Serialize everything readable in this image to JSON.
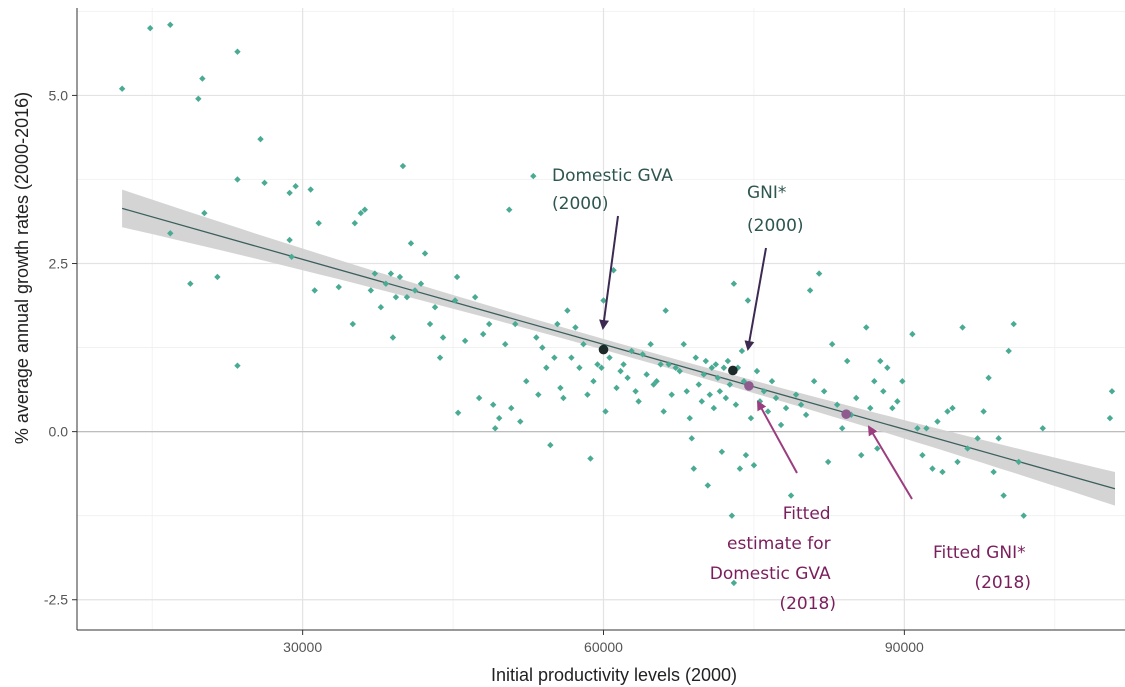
{
  "chart_data": {
    "type": "scatter",
    "xlabel": "Initial productivity levels (2000)",
    "ylabel": "% average annual growth rates (2000-2016)",
    "xlim": [
      7500,
      112000
    ],
    "ylim": [
      -2.95,
      6.3
    ],
    "xticks": [
      30000,
      60000,
      90000
    ],
    "xtick_labels": [
      "30000",
      "60000",
      "90000"
    ],
    "yticks": [
      -2.5,
      0.0,
      2.5,
      5.0
    ],
    "ytick_labels": [
      "-2.5",
      "0.0",
      "2.5",
      "5.0"
    ],
    "grid": true,
    "colors": {
      "points": "#4aab94",
      "fit_line": "#3b5f5c",
      "band": "#cfcfcf",
      "observed": "#1c2b2a",
      "fitted": "#8e5a8f",
      "arrow_observed": "#3c2a52",
      "arrow_fitted": "#9b3d7e",
      "text_observed": "#2e5650",
      "text_fitted": "#7a1f5c"
    },
    "fit": {
      "x": [
        12000,
        111000
      ],
      "y": [
        3.32,
        -0.85
      ],
      "se_at_ends": [
        0.28,
        0.25
      ],
      "se_at_center": 0.08
    },
    "points": [
      [
        12000,
        5.1
      ],
      [
        14800,
        6.0
      ],
      [
        16800,
        6.05
      ],
      [
        16800,
        2.95
      ],
      [
        18800,
        2.2
      ],
      [
        19600,
        4.95
      ],
      [
        20000,
        5.25
      ],
      [
        20200,
        3.25
      ],
      [
        21500,
        2.3
      ],
      [
        23500,
        5.65
      ],
      [
        23500,
        3.75
      ],
      [
        23500,
        0.98
      ],
      [
        25800,
        4.35
      ],
      [
        26200,
        3.7
      ],
      [
        28700,
        3.55
      ],
      [
        28700,
        2.85
      ],
      [
        28900,
        2.6
      ],
      [
        29300,
        3.65
      ],
      [
        30800,
        3.6
      ],
      [
        31200,
        2.1
      ],
      [
        31600,
        3.1
      ],
      [
        33600,
        2.15
      ],
      [
        35000,
        1.6
      ],
      [
        35200,
        3.1
      ],
      [
        35800,
        3.25
      ],
      [
        36200,
        3.3
      ],
      [
        36800,
        2.1
      ],
      [
        37200,
        2.35
      ],
      [
        37800,
        1.85
      ],
      [
        38300,
        2.2
      ],
      [
        38800,
        2.35
      ],
      [
        39000,
        1.4
      ],
      [
        39300,
        2.0
      ],
      [
        39700,
        2.3
      ],
      [
        40000,
        3.95
      ],
      [
        40400,
        2.0
      ],
      [
        40800,
        2.8
      ],
      [
        41200,
        2.1
      ],
      [
        41800,
        2.2
      ],
      [
        42200,
        2.65
      ],
      [
        42700,
        1.6
      ],
      [
        43200,
        1.85
      ],
      [
        43700,
        1.1
      ],
      [
        44000,
        1.4
      ],
      [
        45200,
        1.95
      ],
      [
        45400,
        2.3
      ],
      [
        45500,
        0.28
      ],
      [
        46200,
        1.35
      ],
      [
        47200,
        2.0
      ],
      [
        47600,
        0.5
      ],
      [
        48000,
        1.45
      ],
      [
        48600,
        1.6
      ],
      [
        49000,
        0.4
      ],
      [
        49200,
        0.05
      ],
      [
        49600,
        0.2
      ],
      [
        50200,
        1.3
      ],
      [
        50600,
        3.3
      ],
      [
        50800,
        0.35
      ],
      [
        51200,
        1.6
      ],
      [
        51700,
        0.15
      ],
      [
        52300,
        0.75
      ],
      [
        53000,
        3.8
      ],
      [
        53300,
        1.4
      ],
      [
        53500,
        0.55
      ],
      [
        53900,
        1.25
      ],
      [
        54300,
        0.95
      ],
      [
        54700,
        -0.2
      ],
      [
        55100,
        1.1
      ],
      [
        55400,
        1.6
      ],
      [
        55700,
        0.65
      ],
      [
        56000,
        0.5
      ],
      [
        56400,
        1.8
      ],
      [
        56800,
        1.1
      ],
      [
        57200,
        1.55
      ],
      [
        57600,
        0.95
      ],
      [
        58000,
        1.3
      ],
      [
        58400,
        0.55
      ],
      [
        58700,
        -0.4
      ],
      [
        59000,
        0.75
      ],
      [
        59400,
        1.0
      ],
      [
        59800,
        0.95
      ],
      [
        60000,
        1.95
      ],
      [
        60200,
        0.3
      ],
      [
        60600,
        1.1
      ],
      [
        61000,
        2.4
      ],
      [
        61300,
        0.65
      ],
      [
        61700,
        0.9
      ],
      [
        62000,
        1.0
      ],
      [
        62400,
        0.8
      ],
      [
        62800,
        1.2
      ],
      [
        63200,
        0.6
      ],
      [
        63500,
        0.45
      ],
      [
        63900,
        1.15
      ],
      [
        64300,
        0.85
      ],
      [
        64700,
        1.3
      ],
      [
        65000,
        0.7
      ],
      [
        65300,
        0.75
      ],
      [
        65700,
        1.0
      ],
      [
        66000,
        0.3
      ],
      [
        66200,
        1.8
      ],
      [
        66500,
        1.0
      ],
      [
        66800,
        0.55
      ],
      [
        67200,
        0.95
      ],
      [
        67600,
        0.9
      ],
      [
        68000,
        1.3
      ],
      [
        68300,
        0.6
      ],
      [
        68600,
        0.2
      ],
      [
        68800,
        -0.1
      ],
      [
        69000,
        -0.55
      ],
      [
        69200,
        1.1
      ],
      [
        69500,
        0.7
      ],
      [
        69800,
        0.45
      ],
      [
        70000,
        0.85
      ],
      [
        70200,
        1.05
      ],
      [
        70400,
        -0.8
      ],
      [
        70600,
        0.55
      ],
      [
        70800,
        0.95
      ],
      [
        71000,
        0.35
      ],
      [
        71200,
        1.0
      ],
      [
        71400,
        0.8
      ],
      [
        71600,
        0.6
      ],
      [
        71800,
        -0.3
      ],
      [
        72000,
        0.95
      ],
      [
        72200,
        0.5
      ],
      [
        72400,
        1.05
      ],
      [
        72600,
        0.7
      ],
      [
        72800,
        -1.25
      ],
      [
        73000,
        2.2
      ],
      [
        73200,
        0.4
      ],
      [
        73400,
        0.95
      ],
      [
        73600,
        -0.55
      ],
      [
        73800,
        1.2
      ],
      [
        74000,
        0.75
      ],
      [
        74200,
        -0.35
      ],
      [
        74400,
        1.95
      ],
      [
        74700,
        0.2
      ],
      [
        75000,
        -0.5
      ],
      [
        75300,
        0.9
      ],
      [
        75600,
        0.45
      ],
      [
        76000,
        0.6
      ],
      [
        76400,
        0.3
      ],
      [
        76800,
        0.75
      ],
      [
        77200,
        0.5
      ],
      [
        77700,
        0.1
      ],
      [
        78200,
        0.35
      ],
      [
        78700,
        -0.95
      ],
      [
        79200,
        0.55
      ],
      [
        79700,
        0.4
      ],
      [
        80200,
        0.25
      ],
      [
        80600,
        2.1
      ],
      [
        81000,
        0.75
      ],
      [
        81500,
        2.35
      ],
      [
        82000,
        0.6
      ],
      [
        82400,
        -0.45
      ],
      [
        82800,
        1.3
      ],
      [
        83300,
        0.4
      ],
      [
        83800,
        0.05
      ],
      [
        84300,
        1.05
      ],
      [
        84700,
        0.25
      ],
      [
        85200,
        0.5
      ],
      [
        85700,
        -0.35
      ],
      [
        86200,
        1.55
      ],
      [
        86600,
        0.35
      ],
      [
        87000,
        0.75
      ],
      [
        87300,
        -0.25
      ],
      [
        87600,
        1.05
      ],
      [
        87900,
        0.6
      ],
      [
        88300,
        0.95
      ],
      [
        88800,
        0.35
      ],
      [
        89300,
        0.45
      ],
      [
        89800,
        0.75
      ],
      [
        90800,
        1.45
      ],
      [
        91300,
        0.05
      ],
      [
        91800,
        -0.35
      ],
      [
        92200,
        0.05
      ],
      [
        92800,
        -0.55
      ],
      [
        93300,
        0.15
      ],
      [
        93800,
        -0.6
      ],
      [
        94300,
        0.3
      ],
      [
        94800,
        0.35
      ],
      [
        95300,
        -0.45
      ],
      [
        95800,
        1.55
      ],
      [
        96300,
        -0.25
      ],
      [
        97300,
        -0.1
      ],
      [
        97900,
        0.3
      ],
      [
        98400,
        0.8
      ],
      [
        98900,
        -0.6
      ],
      [
        99400,
        -0.1
      ],
      [
        99900,
        -0.95
      ],
      [
        100400,
        1.2
      ],
      [
        100900,
        1.6
      ],
      [
        101400,
        -0.45
      ],
      [
        101900,
        -1.25
      ],
      [
        103800,
        0.05
      ],
      [
        110500,
        0.2
      ],
      [
        110700,
        0.6
      ],
      [
        73000,
        -2.25
      ]
    ],
    "highlighted": {
      "observed": [
        {
          "name": "Domestic GVA (2000)",
          "x": 60000,
          "y": 1.22
        },
        {
          "name": "GNI* (2000)",
          "x": 72900,
          "y": 0.91
        }
      ],
      "fitted": [
        {
          "name": "Fitted estimate for Domestic GVA (2018)",
          "x": 74500,
          "y": 0.68
        },
        {
          "name": "Fitted GNI* (2018)",
          "x": 84200,
          "y": 0.26
        }
      ]
    },
    "annotations": [
      {
        "id": "domestic_gva",
        "lines": [
          "Domestic GVA",
          "(2000)"
        ]
      },
      {
        "id": "gni",
        "lines": [
          "GNI*",
          "(2000)"
        ]
      },
      {
        "id": "fitted_gva",
        "lines": [
          "Fitted",
          "estimate for",
          "Domestic GVA",
          "(2018)"
        ]
      },
      {
        "id": "fitted_gni",
        "lines": [
          "Fitted GNI*",
          "(2018)"
        ]
      }
    ]
  }
}
